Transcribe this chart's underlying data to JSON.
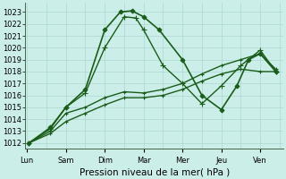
{
  "xlabel": "Pression niveau de la mer( hPa )",
  "days": [
    "Lun",
    "Sam",
    "Dim",
    "Mar",
    "Mer",
    "Jeu",
    "Ven"
  ],
  "day_x": [
    0,
    1,
    2,
    3,
    4,
    5,
    6
  ],
  "ylim": [
    1011.5,
    1023.8
  ],
  "yticks": [
    1012,
    1013,
    1014,
    1015,
    1016,
    1017,
    1018,
    1019,
    1020,
    1021,
    1022,
    1023
  ],
  "xlim": [
    -0.05,
    6.6
  ],
  "bg_color": "#cceee8",
  "grid_color": "#aad8d0",
  "line_color": "#1a5c1a",
  "fig_bg": "#cceee8",
  "lines": [
    {
      "x": [
        0.05,
        0.6,
        1.0,
        1.5,
        2.0,
        2.4,
        2.7,
        3.0,
        3.4,
        4.0,
        4.5,
        5.0,
        5.4,
        5.7,
        6.0,
        6.4
      ],
      "y": [
        1012.0,
        1013.3,
        1015.0,
        1016.5,
        1021.5,
        1023.0,
        1023.1,
        1022.6,
        1021.5,
        1019.0,
        1016.0,
        1014.8,
        1016.8,
        1019.0,
        1019.5,
        1018.0
      ],
      "marker": "D",
      "markersize": 2.5,
      "linewidth": 1.2
    },
    {
      "x": [
        0.05,
        0.6,
        1.0,
        1.5,
        2.0,
        2.5,
        2.8,
        3.0,
        3.5,
        4.0,
        4.5,
        5.0,
        5.5,
        6.0,
        6.4
      ],
      "y": [
        1012.0,
        1013.2,
        1015.0,
        1016.2,
        1020.0,
        1022.6,
        1022.5,
        1021.5,
        1018.5,
        1017.0,
        1015.3,
        1016.8,
        1018.5,
        1019.8,
        1018.0
      ],
      "marker": "+",
      "markersize": 4,
      "linewidth": 1.0
    },
    {
      "x": [
        0.05,
        0.6,
        1.0,
        1.5,
        2.0,
        2.5,
        3.0,
        3.5,
        4.0,
        4.5,
        5.0,
        5.5,
        6.0,
        6.4
      ],
      "y": [
        1012.0,
        1013.0,
        1014.5,
        1015.0,
        1015.8,
        1016.3,
        1016.2,
        1016.5,
        1017.0,
        1017.8,
        1018.5,
        1019.0,
        1019.5,
        1018.2
      ],
      "marker": "+",
      "markersize": 3,
      "linewidth": 1.0
    },
    {
      "x": [
        0.05,
        0.6,
        1.0,
        1.5,
        2.0,
        2.5,
        3.0,
        3.5,
        4.0,
        4.5,
        5.0,
        5.5,
        6.0,
        6.4
      ],
      "y": [
        1012.0,
        1012.8,
        1013.8,
        1014.5,
        1015.2,
        1015.8,
        1015.8,
        1016.0,
        1016.5,
        1017.2,
        1017.8,
        1018.2,
        1018.0,
        1018.0
      ],
      "marker": "+",
      "markersize": 3,
      "linewidth": 1.0
    }
  ],
  "tick_fontsize": 6,
  "label_fontsize": 7.5
}
